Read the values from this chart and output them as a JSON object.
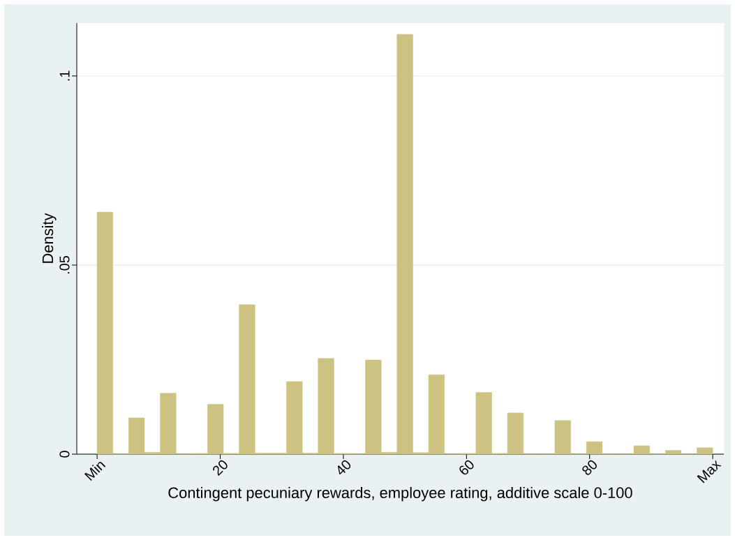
{
  "chart_data": {
    "type": "histogram",
    "xlabel": "Contingent pecuniary rewards, employee rating, additive scale 0-100",
    "ylabel": "Density",
    "bins": [
      0,
      2.56,
      5.13,
      7.69,
      10.26,
      12.82,
      15.38,
      17.95,
      20.51,
      23.08,
      25.64,
      28.21,
      30.77,
      33.33,
      35.9,
      38.46,
      41.03,
      43.59,
      46.15,
      48.72,
      51.28,
      53.85,
      56.41,
      58.97,
      61.54,
      64.1,
      66.67,
      69.23,
      71.79,
      74.36,
      76.92,
      79.49,
      82.05,
      84.62,
      87.18,
      89.74,
      92.31,
      94.87,
      97.44,
      100
    ],
    "values": [
      0.064,
      0,
      0.0096,
      0.0005,
      0.0161,
      0,
      0.0002,
      0.0132,
      0.0002,
      0.0395,
      0.0003,
      0.0003,
      0.0192,
      0.0003,
      0.0253,
      0.0002,
      0,
      0.0249,
      0.0005,
      0.111,
      0.0004,
      0.021,
      0,
      0.0002,
      0.0163,
      0.0002,
      0.0109,
      0,
      0,
      0.0089,
      0,
      0.0033,
      0,
      0,
      0.0022,
      0,
      0.001,
      0,
      0.0017
    ],
    "color": "#ccc281",
    "xlim": [
      -3.3,
      101.8
    ],
    "ylim": [
      0,
      0.114
    ],
    "xticks": [
      {
        "value": 0,
        "label": "Min"
      },
      20,
      40,
      60,
      80,
      {
        "value": 100,
        "label": "Max"
      }
    ],
    "yticks": [
      {
        "value": 0,
        "label": "0"
      },
      {
        "value": 0.05,
        "label": ".05"
      },
      {
        "value": 0.1,
        "label": ".1"
      }
    ],
    "grid": "y"
  }
}
